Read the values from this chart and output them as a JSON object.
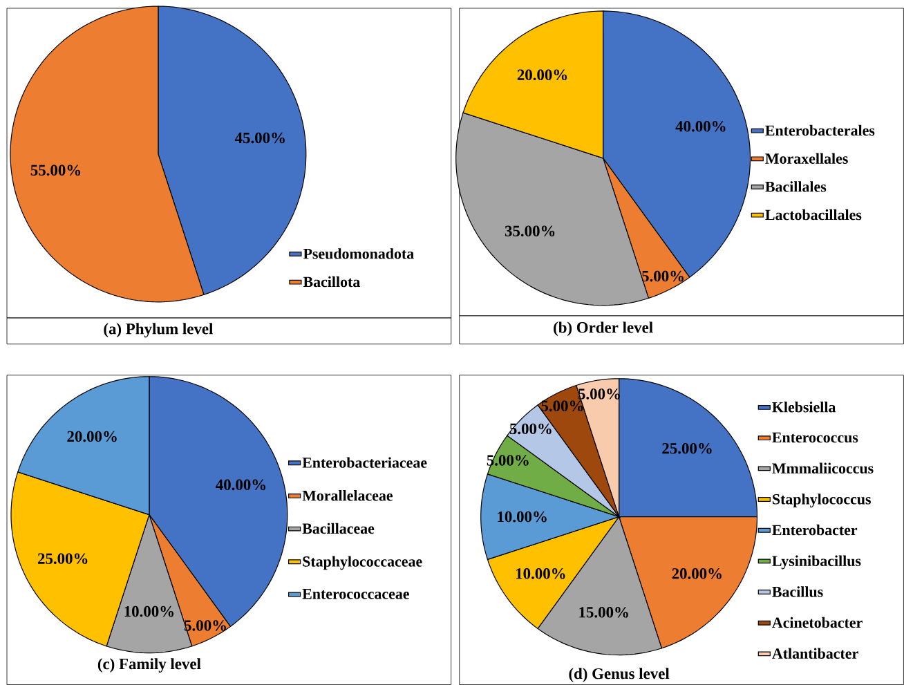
{
  "chart_data": [
    {
      "type": "pie",
      "title": "(a) Phylum level",
      "categories": [
        "Pseudomonadota",
        "Bacillota"
      ],
      "values": [
        45,
        55
      ],
      "colors": [
        "#4472c4",
        "#ed7d31"
      ],
      "value_labels": [
        "45.00%",
        "55.00%"
      ],
      "legend": "bottom right"
    },
    {
      "type": "pie",
      "title": "(b) Order level",
      "categories": [
        "Enterobacterales",
        "Moraxellales",
        "Bacillales",
        "Lactobacillales"
      ],
      "values": [
        40,
        5,
        35,
        20
      ],
      "colors": [
        "#4472c4",
        "#ed7d31",
        "#a5a5a5",
        "#ffc000"
      ],
      "value_labels": [
        "40.00%",
        "5.00%",
        "35.00%",
        "20.00%"
      ],
      "legend": "right"
    },
    {
      "type": "pie",
      "title": "(c) Family level",
      "categories": [
        "Enterobacteriaceae",
        "Morallelaceae",
        "Bacillaceae",
        "Staphylococcaceae",
        "Enterococcaceae"
      ],
      "values": [
        40,
        5,
        10,
        25,
        20
      ],
      "colors": [
        "#4472c4",
        "#ed7d31",
        "#a5a5a5",
        "#ffc000",
        "#5b9bd5"
      ],
      "value_labels": [
        "40.00%",
        "5.00%",
        "10.00%",
        "25.00%",
        "20.00%"
      ],
      "legend": "right"
    },
    {
      "type": "pie",
      "title": "(d) Genus level",
      "categories": [
        "Klebsiella",
        "Enterococcus",
        "Mmmaliicoccus",
        "Staphylococcus",
        "Enterobacter",
        "Lysinibacillus",
        "Bacillus",
        "Acinetobacter",
        "Atlantibacter"
      ],
      "values": [
        25,
        20,
        15,
        10,
        10,
        5,
        5,
        5,
        5
      ],
      "colors": [
        "#4472c4",
        "#ed7d31",
        "#a5a5a5",
        "#ffc000",
        "#5b9bd5",
        "#70ad47",
        "#b4c7e7",
        "#9e480e",
        "#f8cbad"
      ],
      "value_labels": [
        "25.00%",
        "20.00%",
        "15.00%",
        "10.00%",
        "10.00%",
        "5.00%",
        "5.00%",
        "5.00%",
        "5.00%"
      ],
      "legend": "right"
    }
  ]
}
